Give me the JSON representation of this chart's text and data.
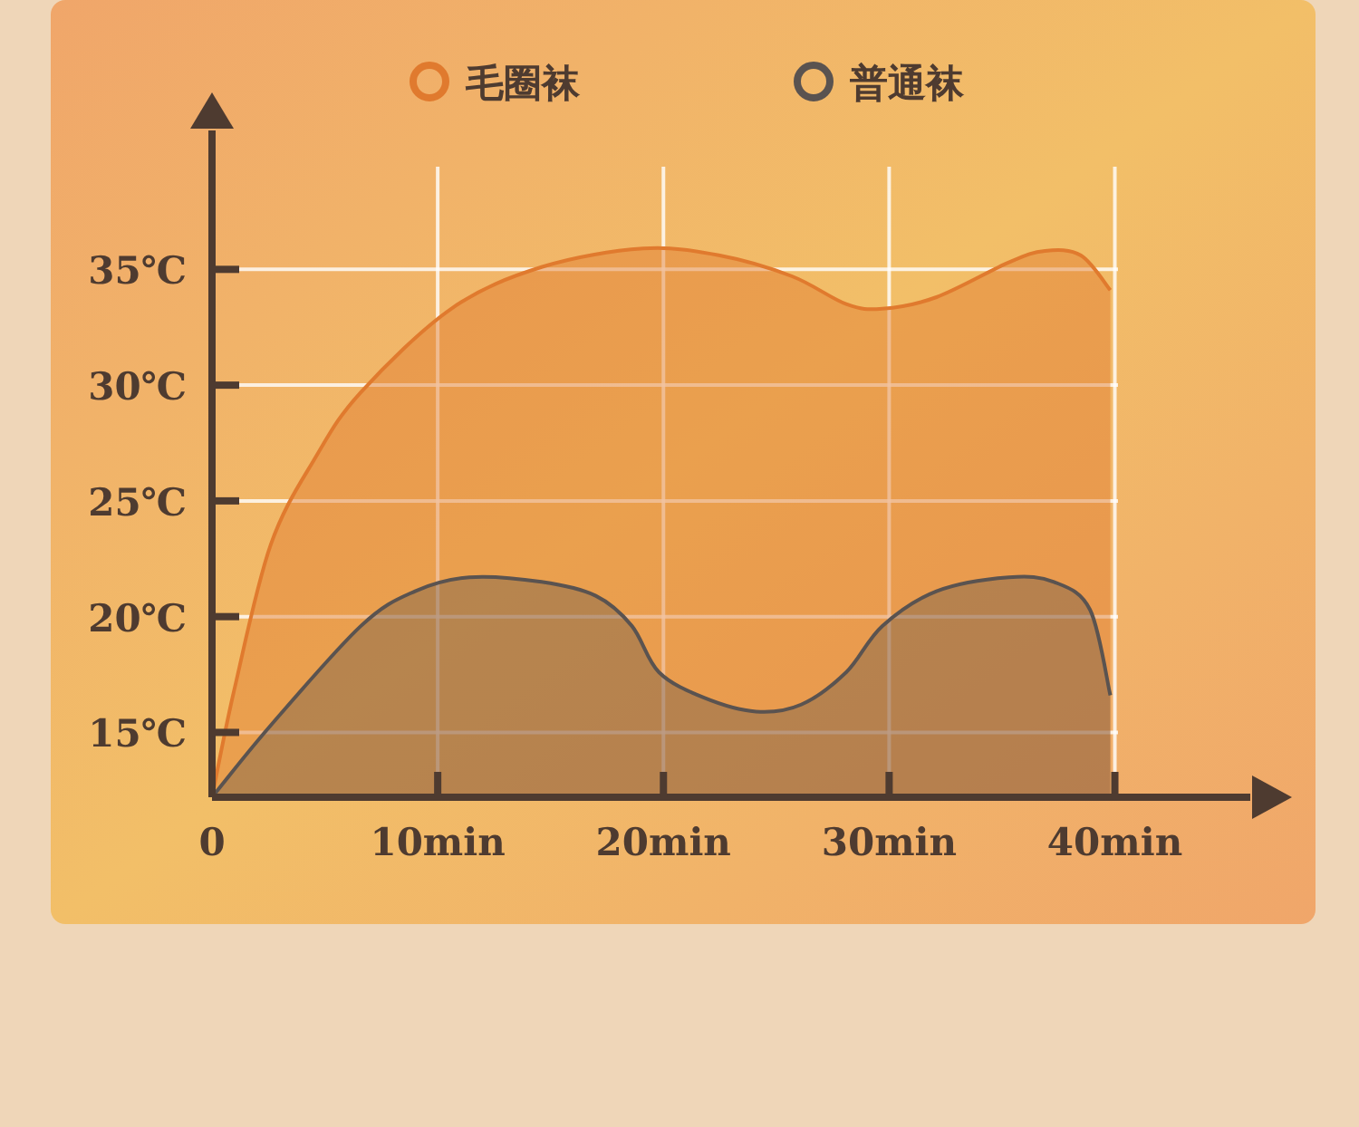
{
  "chart_data": {
    "type": "area",
    "legend": "top",
    "grid": true,
    "marker": "none",
    "xlim": [
      0,
      46
    ],
    "ylim": [
      12.2,
      41
    ],
    "xticks": [
      0,
      {
        "value": 10,
        "label": "10min"
      },
      {
        "value": 20,
        "label": "20min"
      },
      {
        "value": 30,
        "label": "30min"
      },
      {
        "value": 40,
        "label": "40min"
      }
    ],
    "yticks": [
      {
        "value": 15,
        "label": "15℃"
      },
      {
        "value": 20,
        "label": "20℃"
      },
      {
        "value": 25,
        "label": "25℃"
      },
      {
        "value": 30,
        "label": "30℃"
      },
      {
        "value": 35,
        "label": "35℃"
      }
    ],
    "series": [
      {
        "name": "毛圈袜",
        "color": "#e07a2e",
        "x": [
          0,
          1.0,
          2.6,
          4.6,
          6.6,
          10.6,
          14.6,
          19.1,
          22.5,
          25.7,
          28.1,
          29.7,
          32.1,
          35.3,
          36.9,
          38.5,
          39.8
        ],
        "values": [
          12.2,
          16.9,
          23.1,
          26.9,
          29.7,
          33.3,
          35.1,
          35.9,
          35.6,
          34.7,
          33.5,
          33.3,
          33.8,
          35.3,
          35.8,
          35.6,
          34.1
        ]
      },
      {
        "name": "普通袜",
        "color": "#5a5350",
        "x": [
          0,
          2.6,
          6.6,
          9.0,
          11.4,
          14.6,
          17.0,
          18.6,
          19.8,
          21.8,
          24.1,
          26.1,
          28.1,
          29.7,
          32.1,
          35.3,
          37.3,
          38.9,
          39.8
        ],
        "values": [
          12.2,
          15.3,
          19.6,
          21.1,
          21.7,
          21.5,
          20.9,
          19.6,
          17.6,
          16.5,
          15.9,
          16.2,
          17.6,
          19.6,
          21.1,
          21.7,
          21.5,
          20.3,
          16.6
        ]
      }
    ]
  }
}
